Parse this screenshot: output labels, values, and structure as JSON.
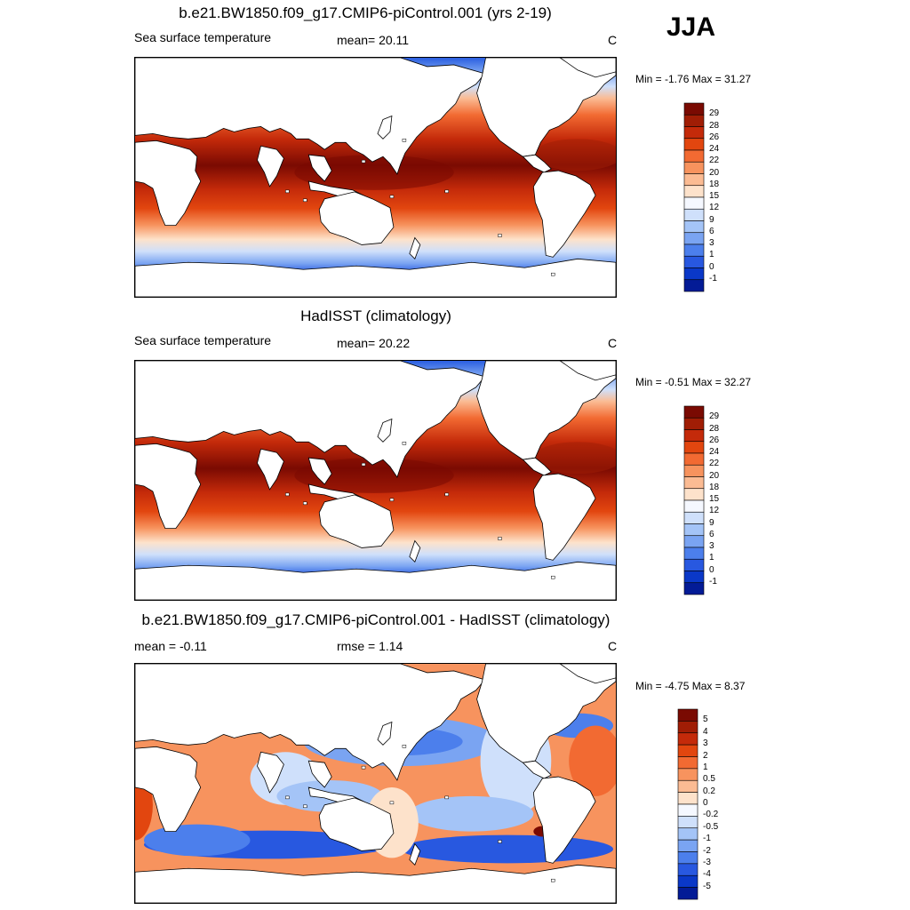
{
  "season": "JJA",
  "panels": [
    {
      "title": "b.e21.BW1850.f09_g17.CMIP6-piControl.001 (yrs 2-19)",
      "left": "Sea surface temperature",
      "center": "mean=  20.11",
      "right": "C",
      "minmax": "Min =  -1.76 Max =  31.27",
      "kind": "sst",
      "colorbar": {
        "labels": [
          "29",
          "28",
          "26",
          "24",
          "22",
          "20",
          "18",
          "15",
          "12",
          "9",
          "6",
          "3",
          "1",
          "0",
          "-1"
        ],
        "colors": [
          "#7a0a02",
          "#a01d05",
          "#c42a0a",
          "#e2460f",
          "#f26a32",
          "#f7935e",
          "#fbbb93",
          "#fde2cb",
          "#f5f8ff",
          "#cfe0fb",
          "#a4c4f7",
          "#7aa4f2",
          "#4c7fec",
          "#2858e0",
          "#0a38c8",
          "#031b96"
        ]
      }
    },
    {
      "title": "HadISST (climatology)",
      "left": "Sea surface temperature",
      "center": "mean=  20.22",
      "right": "C",
      "minmax": "Min =  -0.51 Max =  32.27",
      "kind": "sst",
      "colorbar": {
        "labels": [
          "29",
          "28",
          "26",
          "24",
          "22",
          "20",
          "18",
          "15",
          "12",
          "9",
          "6",
          "3",
          "1",
          "0",
          "-1"
        ],
        "colors": [
          "#7a0a02",
          "#a01d05",
          "#c42a0a",
          "#e2460f",
          "#f26a32",
          "#f7935e",
          "#fbbb93",
          "#fde2cb",
          "#f5f8ff",
          "#cfe0fb",
          "#a4c4f7",
          "#7aa4f2",
          "#4c7fec",
          "#2858e0",
          "#0a38c8",
          "#031b96"
        ]
      }
    },
    {
      "title": "b.e21.BW1850.f09_g17.CMIP6-piControl.001 - HadISST (climatology)",
      "left": "mean =  -0.11",
      "center": "rmse =    1.14",
      "right": "C",
      "minmax": "Min =  -4.75 Max =   8.37",
      "kind": "diff",
      "colorbar": {
        "labels": [
          "5",
          "4",
          "3",
          "2",
          "1",
          "0.5",
          "0.2",
          "0",
          "-0.2",
          "-0.5",
          "-1",
          "-2",
          "-3",
          "-4",
          "-5"
        ],
        "colors": [
          "#7a0a02",
          "#a01d05",
          "#c42a0a",
          "#e2460f",
          "#f26a32",
          "#f7935e",
          "#fbbb93",
          "#fde2cb",
          "#f5f8ff",
          "#cfe0fb",
          "#a4c4f7",
          "#7aa4f2",
          "#4c7fec",
          "#2858e0",
          "#0a38c8",
          "#031b96"
        ]
      }
    }
  ]
}
